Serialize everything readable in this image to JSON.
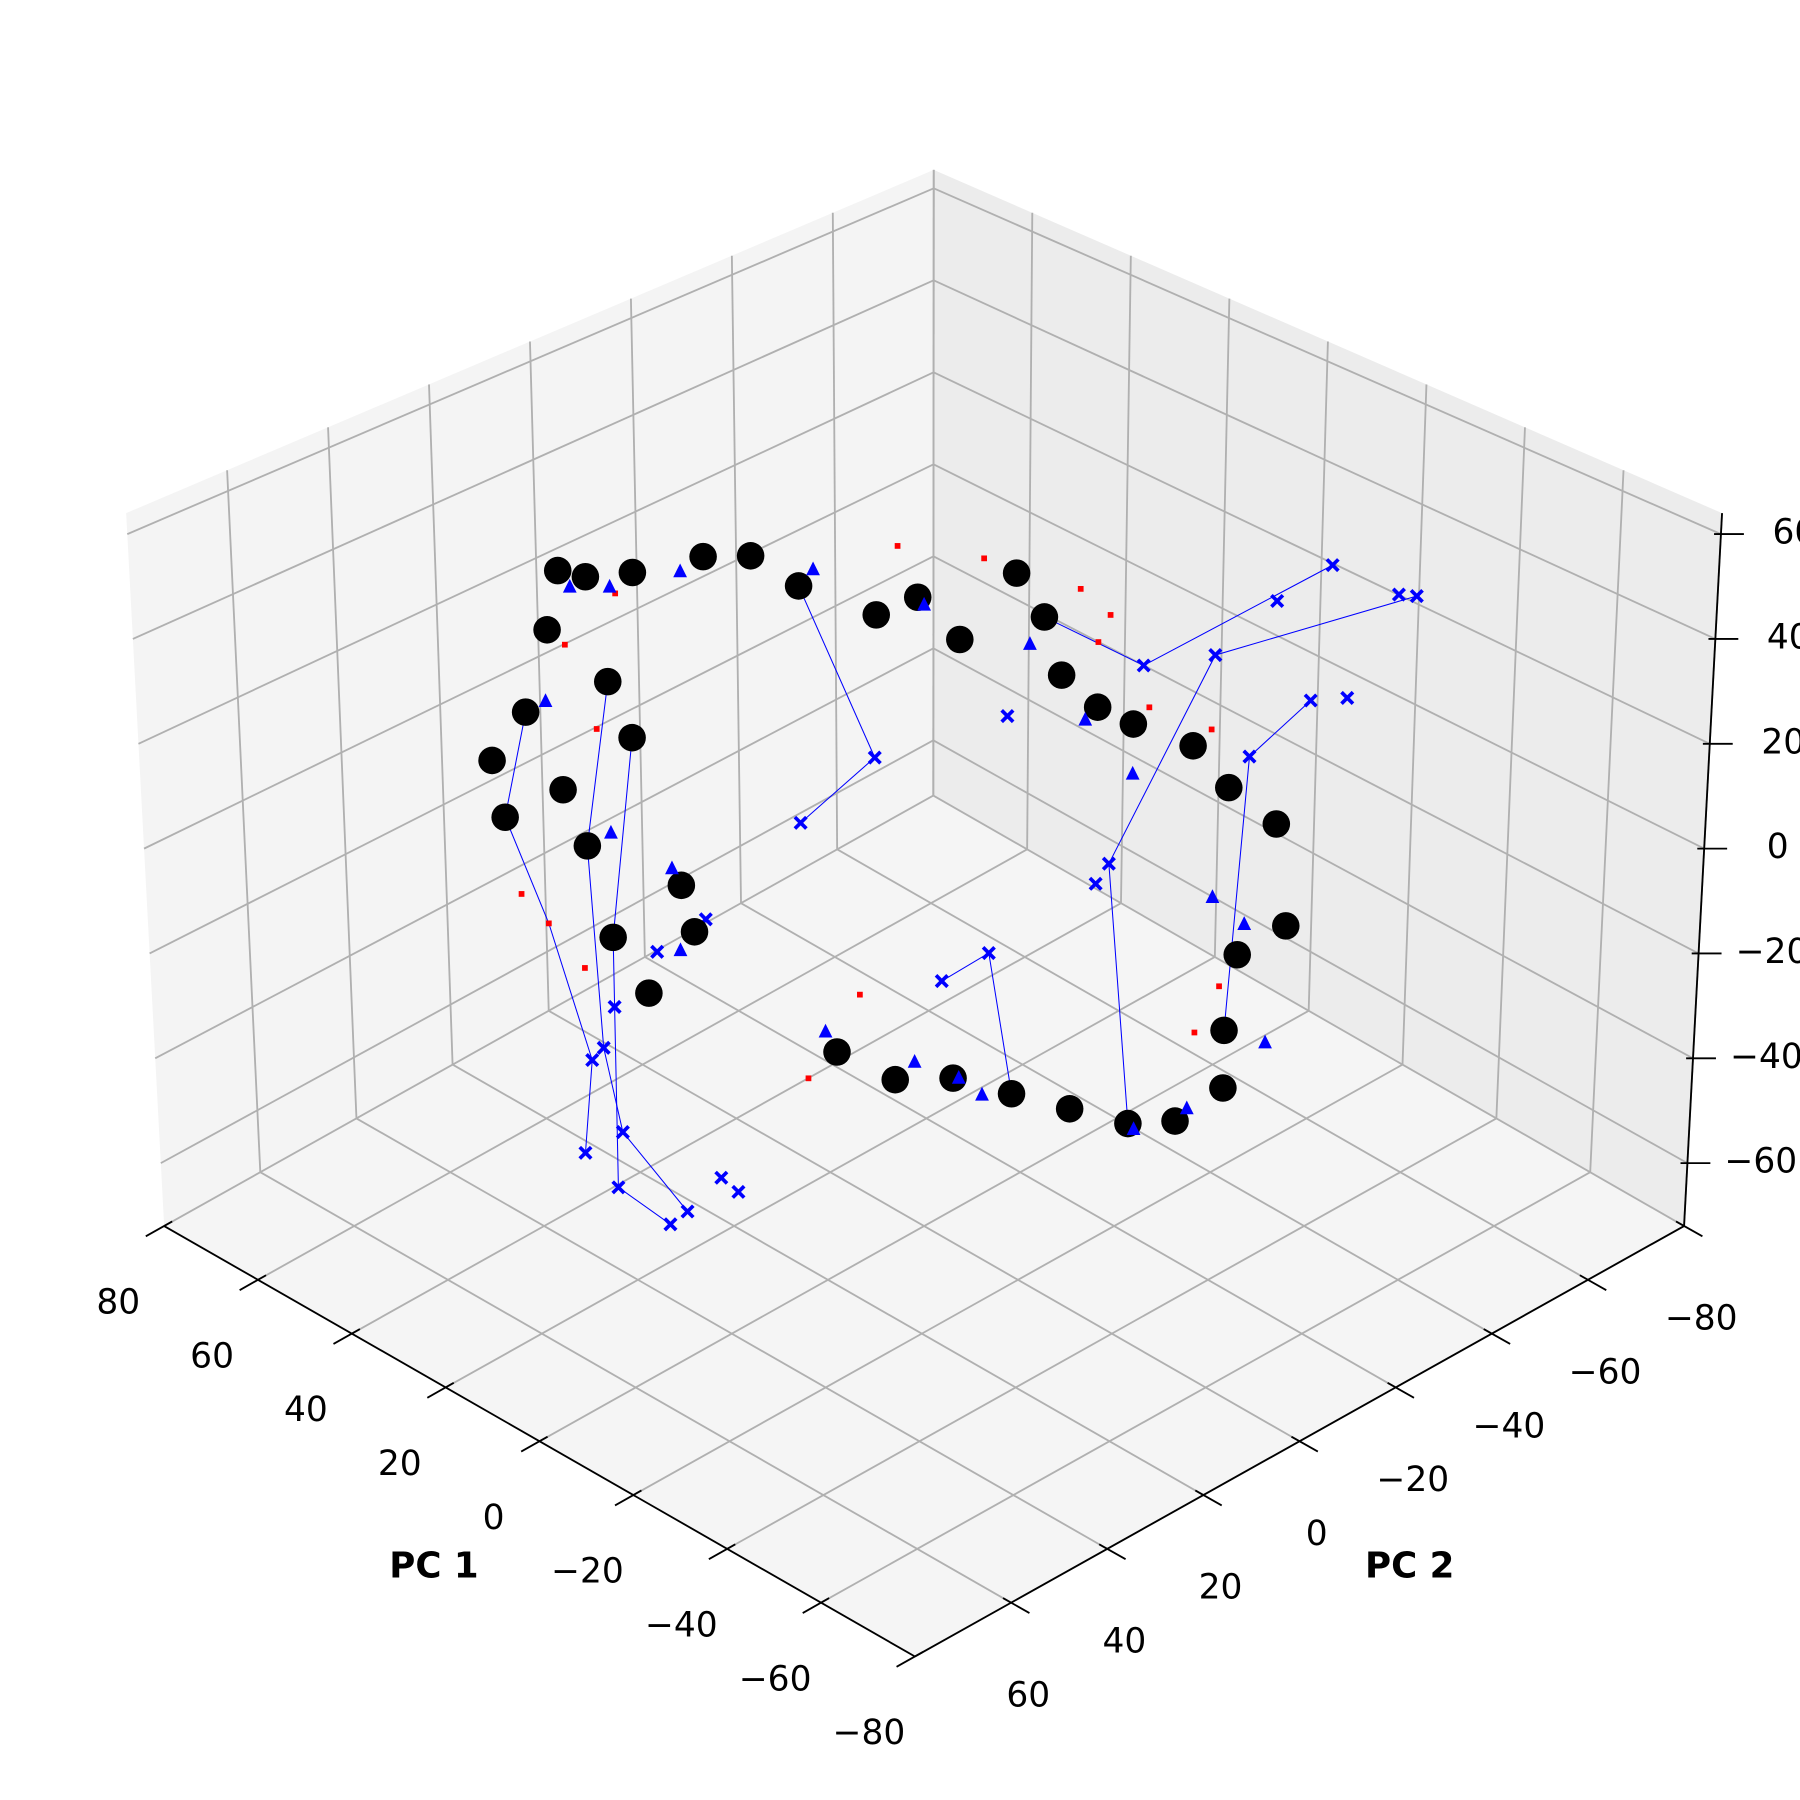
{
  "chart_data": {
    "type": "scatter3d",
    "xlabel": "PC 1",
    "ylabel": "PC 2",
    "xlim": [
      -80,
      80
    ],
    "ylim": [
      -80,
      80
    ],
    "zlim": [
      -72,
      64
    ],
    "xticks": [
      80,
      60,
      40,
      20,
      0,
      {
        "value": -20,
        "label": "−20"
      },
      {
        "value": -40,
        "label": "−40"
      },
      {
        "value": -60,
        "label": "−60"
      },
      {
        "value": -80,
        "label": "−80"
      }
    ],
    "yticks": [
      {
        "value": -80,
        "label": "−80"
      },
      {
        "value": -60,
        "label": "−60"
      },
      {
        "value": -40,
        "label": "−40"
      },
      {
        "value": -20,
        "label": "−20"
      },
      0,
      20,
      40,
      60
    ],
    "zticks": [
      60,
      40,
      20,
      0,
      {
        "value": -20,
        "label": "−20"
      },
      {
        "value": -40,
        "label": "−40"
      },
      {
        "value": -60,
        "label": "−60"
      }
    ],
    "grid": true,
    "trajectories": {
      "color": "#0000ff",
      "paths": [
        {
          "x": [
            30.7,
            28.8,
            37.3,
            45.9,
            41
          ],
          "y": [
            40,
            40,
            40,
            40,
            40
          ],
          "z": [
            -53.4,
            -34.9,
            -13,
            3.3,
            25.6
          ]
        },
        {
          "x": [
            12.8,
            23.8,
            23.8,
            23.8,
            19
          ],
          "y": [
            40,
            40,
            40,
            40,
            40
          ],
          "z": [
            -58,
            -56.5,
            -22.5,
            -9.4,
            30.3
          ]
        },
        {
          "x": [
            9.1,
            22.6,
            26.3,
            28.8,
            23.8
          ],
          "y": [
            40,
            40,
            40,
            40,
            40
          ],
          "z": [
            -53.8,
            -45.5,
            -31.4,
            5.6,
            38.8
          ]
        },
        {
          "x": [
            25.7,
            10.2,
            25.7
          ],
          "y": [
            0,
            0,
            0
          ],
          "z": [
            -7,
            12.8,
            39.1
          ]
        },
        {
          "x": [
            -59.3,
            -18.9,
            2.3,
            -42.8
          ],
          "y": [
            -40,
            -40,
            -40,
            0
          ],
          "z": [
            56.2,
            27.7,
            -23,
            -31.8
          ]
        },
        {
          "x": [
            -42.2,
            -4.3,
            -24.5
          ],
          "y": [
            -40,
            -40,
            0
          ],
          "z": [
            55,
            19.1,
            54.4
          ]
        },
        {
          "x": [
            -3.7,
            -13.5,
            -18.4
          ],
          "y": [
            0,
            0,
            0
          ],
          "z": [
            -23.5,
            -13.6,
            -37.8
          ]
        },
        {
          "x": [
            -38.5,
            -26.3,
            -62.4
          ],
          "y": [
            -40,
            -40,
            0
          ],
          "z": [
            27.6,
            11.4,
            -5.8
          ]
        }
      ]
    },
    "series": [
      {
        "marker": "square",
        "color": "#ff0000",
        "x": [
          5.4,
          -12.2,
          -31.8,
          -37.9,
          -35.5,
          -46,
          -58.7,
          -61.2,
          -56.3,
          24.5,
          13.5,
          21.9,
          32.5,
          26.3,
          42.9,
          37.3,
          29.9
        ],
        "y": [
          0,
          0,
          0,
          0,
          0,
          0,
          0,
          0,
          0,
          0,
          0,
          40,
          40,
          40,
          40,
          40,
          40
        ],
        "z": [
          55.5,
          60.4,
          62.6,
          60.2,
          54.2,
          46.4,
          47.5,
          1.7,
          -8.9,
          -56.1,
          -34.4,
          56.2,
          42.1,
          28.8,
          -10,
          -13,
          -18
        ]
      },
      {
        "marker": "cross",
        "color": "#0000ff",
        "x": [
          -42.2,
          -55.7,
          -59.3,
          -31.2,
          -38.5,
          -45.9,
          -18.9,
          -4.3,
          -26.3,
          2.3,
          5,
          -17.1,
          10.2,
          25.7,
          -13.5,
          -3.7,
          28.8,
          26.3,
          23.8,
          30.7,
          22.6,
          23.8,
          9.1,
          1.8,
          -1.8,
          12.8,
          14.6,
          4.3
        ],
        "y": [
          -40,
          -40,
          -40,
          -40,
          -40,
          -40,
          -40,
          -40,
          -40,
          -40,
          -40,
          0,
          0,
          0,
          0,
          0,
          40,
          40,
          40,
          40,
          40,
          40,
          40,
          40,
          40,
          40,
          40,
          40
        ],
        "z": [
          55,
          55,
          56.2,
          43.5,
          27.6,
          31.3,
          27.7,
          19.1,
          11.4,
          -23,
          -28.3,
          32.7,
          12.8,
          -7,
          -13.6,
          -23.5,
          -34.9,
          -31.4,
          -22.5,
          -53.4,
          -45.5,
          -56.5,
          -53.8,
          -44,
          -44.9,
          -58,
          -7.9,
          2.8
        ]
      },
      {
        "marker": "circle",
        "color": "#000000",
        "x": [
          69.8,
          60,
          45.3,
          35.5,
          25.7,
          9.8,
          1.3,
          -7.3,
          -18.8,
          -24.5,
          -28.1,
          -35.5,
          -42.8,
          -55,
          -62.4,
          -72.2,
          -74.6,
          -64.8,
          -62.4,
          -62.4,
          -52.6,
          -42.8,
          -30.6,
          -18.4,
          -6.1,
          6.1,
          18.4,
          33.6,
          36.1,
          41,
          48.3,
          45.9,
          33.6,
          23.8,
          19,
          28.8,
          23.8,
          16.5,
          6.7,
          9.3
        ],
        "y": [
          0,
          0,
          0,
          0,
          0,
          0,
          0,
          0,
          0,
          0,
          0,
          0,
          0,
          0,
          0,
          0,
          0,
          0,
          0,
          0,
          0,
          0,
          0,
          0,
          0,
          0,
          0,
          40,
          40,
          40,
          40,
          40,
          40,
          40,
          40,
          40,
          40,
          40,
          40,
          40
        ],
        "z": [
          21,
          26.4,
          36.2,
          40.7,
          39.1,
          40.4,
          47.4,
          43,
          60.3,
          54.4,
          45,
          42.1,
          42,
          43,
          38.4,
          35.8,
          18.4,
          9,
          -5.8,
          -16.3,
          -26.8,
          -31.8,
          -34.8,
          -37.8,
          -40.8,
          -47.1,
          -47.9,
          55.7,
          43.4,
          25.6,
          13.1,
          3.3,
          14.1,
          38.8,
          30.3,
          5.6,
          -9.4,
          -16.5,
          -0.6,
          6.9
        ]
      },
      {
        "marker": "triangle",
        "color": "#0000ff",
        "x": [
          64.8,
          50.1,
          22.7,
          0,
          -21.6,
          -33,
          -42.8,
          -59.5,
          -66.1,
          -70.9,
          -55,
          -44,
          -12.2,
          -7.3,
          2,
          20.8,
          31.2,
          36.8,
          23.8,
          11.2,
          9.7
        ],
        "y": [
          0,
          0,
          0,
          0,
          0,
          0,
          0,
          0,
          0,
          0,
          0,
          0,
          0,
          0,
          0,
          0,
          40,
          40,
          40,
          40,
          40
        ],
        "z": [
          21.3,
          31.1,
          43.6,
          46.5,
          48.1,
          38.7,
          32.8,
          17.2,
          15.1,
          -4.3,
          -23.4,
          -32.3,
          -41,
          -40.2,
          -41.7,
          -45.2,
          53.6,
          29.5,
          10.3,
          9.2,
          -5.4
        ]
      }
    ]
  }
}
